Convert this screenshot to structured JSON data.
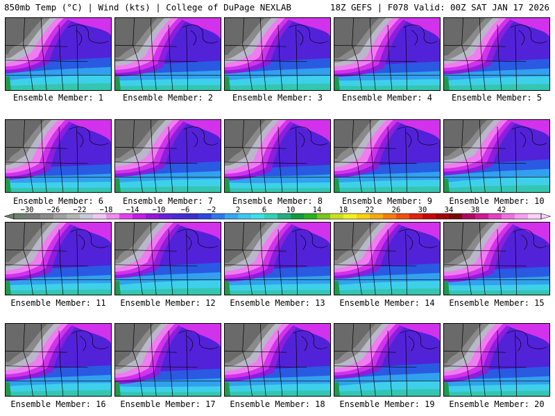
{
  "header": {
    "left": "850mb Temp (°C) | Wind (kts) | College of DuPage NEXLAB",
    "right": "18Z GEFS | F078 Valid: 00Z SAT JAN 17 2026"
  },
  "members": [
    {
      "label": "Ensemble Member: 1",
      "variant": 0
    },
    {
      "label": "Ensemble Member: 2",
      "variant": 1
    },
    {
      "label": "Ensemble Member: 3",
      "variant": 2
    },
    {
      "label": "Ensemble Member: 4",
      "variant": 3
    },
    {
      "label": "Ensemble Member: 5",
      "variant": 4
    },
    {
      "label": "Ensemble Member: 6",
      "variant": 5
    },
    {
      "label": "Ensemble Member: 7",
      "variant": 6
    },
    {
      "label": "Ensemble Member: 8",
      "variant": 7
    },
    {
      "label": "Ensemble Member: 9",
      "variant": 8
    },
    {
      "label": "Ensemble Member: 10",
      "variant": 9
    },
    {
      "label": "Ensemble Member: 11",
      "variant": 10
    },
    {
      "label": "Ensemble Member: 12",
      "variant": 11
    },
    {
      "label": "Ensemble Member: 13",
      "variant": 12
    },
    {
      "label": "Ensemble Member: 14",
      "variant": 13
    },
    {
      "label": "Ensemble Member: 15",
      "variant": 14
    },
    {
      "label": "Ensemble Member: 16",
      "variant": 15
    },
    {
      "label": "Ensemble Member: 17",
      "variant": 16
    },
    {
      "label": "Ensemble Member: 18",
      "variant": 17
    },
    {
      "label": "Ensemble Member: 19",
      "variant": 18
    },
    {
      "label": "Ensemble Member: 20",
      "variant": 19
    }
  ],
  "colorbar": {
    "ticks": [
      "−30",
      "−26",
      "−22",
      "−18",
      "−14",
      "−10",
      "−6",
      "−2",
      "2",
      "6",
      "10",
      "14",
      "18",
      "22",
      "26",
      "30",
      "34",
      "38",
      "42"
    ],
    "colors": [
      "#6f7f6f",
      "#7a7a7a",
      "#8a8a8a",
      "#a0a0a0",
      "#b4b4b4",
      "#c8c8d8",
      "#f2c6f2",
      "#f08cf0",
      "#e040ee",
      "#c020e0",
      "#9418d8",
      "#6c20d8",
      "#4a2ad8",
      "#3a30cc",
      "#2a4ae0",
      "#2e78ee",
      "#36a6f2",
      "#3cc8ec",
      "#3ce0e6",
      "#30d2b4",
      "#20b080",
      "#139a3c",
      "#2ab020",
      "#7cc41a",
      "#c8e020",
      "#f0f020",
      "#f8d010",
      "#f8a810",
      "#f47c10",
      "#ee5010",
      "#e02010",
      "#c80808",
      "#a00808",
      "#7a0808",
      "#b00860",
      "#d01890",
      "#e440c0",
      "#f070e0",
      "#f8a0f0",
      "#fcd0f8"
    ]
  },
  "palette": {
    "gray_dark": "#6a6a6a",
    "gray_mid": "#8a8a8a",
    "gray_light": "#b8b8c8",
    "pink": "#f07cf2",
    "magenta": "#d232ec",
    "violet": "#8c1edc",
    "indigo": "#5222d8",
    "blue": "#3436d0",
    "royal": "#2a5ae2",
    "sky": "#32a0ee",
    "cyan": "#3ed0ea",
    "teal": "#34c6b0",
    "green": "#1f9a4a",
    "contour": "#000000"
  }
}
